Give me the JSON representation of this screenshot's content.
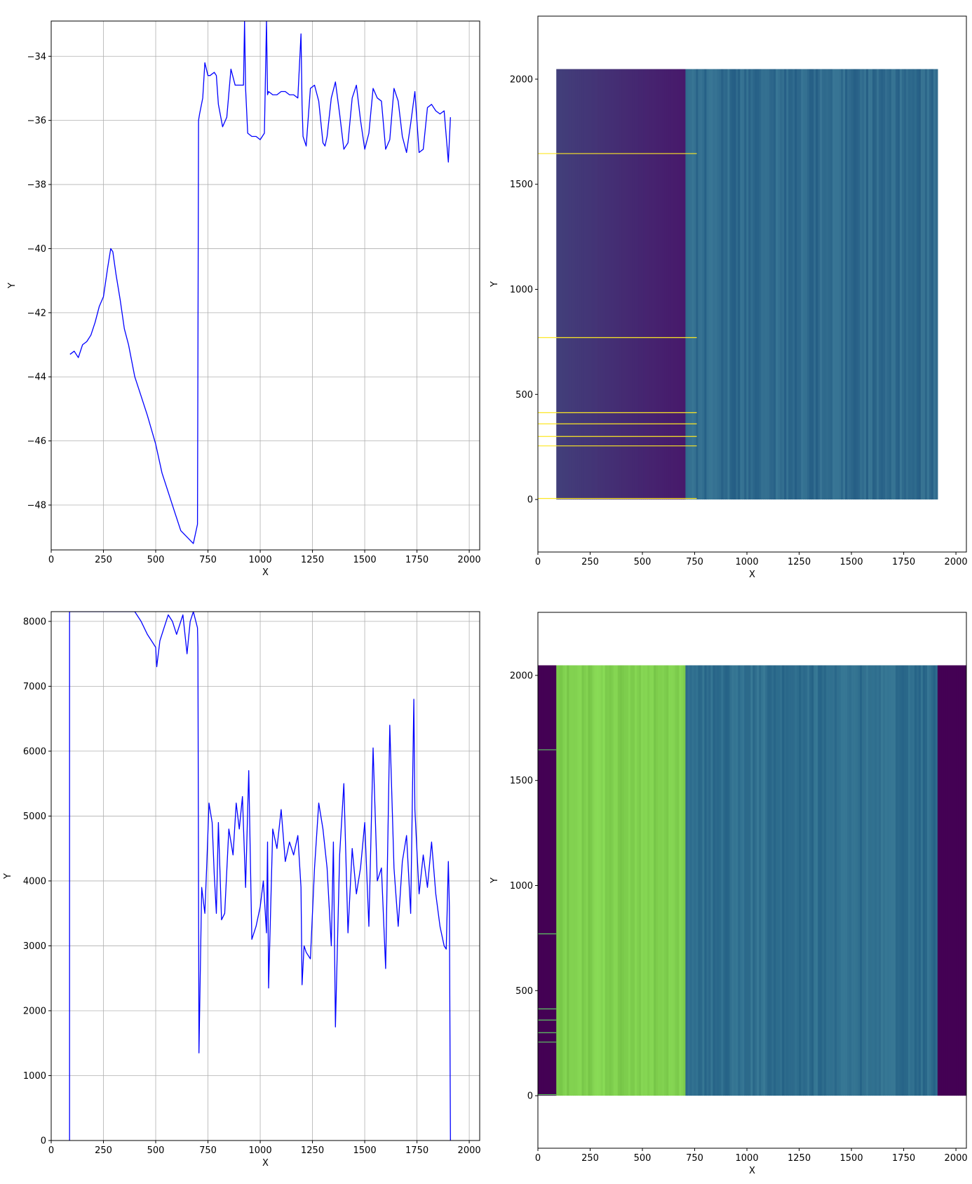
{
  "chart_data": [
    {
      "id": "top-left",
      "type": "line",
      "xlabel": "X",
      "ylabel": "Y",
      "xlim": [
        0,
        2050
      ],
      "ylim": [
        -49.4,
        -32.9
      ],
      "xticks": [
        0,
        250,
        500,
        750,
        1000,
        1250,
        1500,
        1750,
        2000
      ],
      "yticks": [
        -48,
        -46,
        -44,
        -42,
        -40,
        -38,
        -36,
        -34
      ],
      "grid": true,
      "color": "#0000ff",
      "series": [
        {
          "x": [
            90,
            110,
            130,
            150,
            170,
            190,
            210,
            230,
            250,
            270,
            285,
            295,
            310,
            330,
            350,
            370,
            400,
            430,
            460,
            500,
            530,
            560,
            590,
            620,
            650,
            680,
            700,
            705,
            710,
            725,
            735,
            750,
            760,
            780,
            790,
            800,
            820,
            840,
            860,
            880,
            900,
            920,
            925,
            930,
            940,
            960,
            980,
            1000,
            1020,
            1030,
            1035,
            1040,
            1060,
            1080,
            1100,
            1120,
            1140,
            1160,
            1180,
            1195,
            1200,
            1205,
            1220,
            1240,
            1260,
            1280,
            1300,
            1310,
            1320,
            1340,
            1360,
            1380,
            1400,
            1420,
            1440,
            1460,
            1480,
            1500,
            1520,
            1540,
            1560,
            1580,
            1600,
            1620,
            1640,
            1660,
            1680,
            1700,
            1720,
            1740,
            1760,
            1780,
            1800,
            1820,
            1840,
            1860,
            1880,
            1900,
            1910
          ],
          "y": [
            -43.3,
            -43.2,
            -43.4,
            -43.0,
            -42.9,
            -42.7,
            -42.3,
            -41.8,
            -41.5,
            -40.6,
            -40.0,
            -40.1,
            -40.8,
            -41.6,
            -42.5,
            -43.0,
            -44.0,
            -44.6,
            -45.2,
            -46.1,
            -47.0,
            -47.6,
            -48.2,
            -48.8,
            -49.0,
            -49.2,
            -48.6,
            -36.0,
            -35.8,
            -35.3,
            -34.2,
            -34.6,
            -34.6,
            -34.5,
            -34.6,
            -35.5,
            -36.2,
            -35.9,
            -34.4,
            -34.9,
            -34.9,
            -34.9,
            -32.9,
            -35.0,
            -36.4,
            -36.5,
            -36.5,
            -36.6,
            -36.4,
            -32.9,
            -35.2,
            -35.1,
            -35.2,
            -35.2,
            -35.1,
            -35.1,
            -35.2,
            -35.2,
            -35.3,
            -33.3,
            -35.5,
            -36.5,
            -36.8,
            -35.0,
            -34.9,
            -35.4,
            -36.7,
            -36.8,
            -36.5,
            -35.3,
            -34.8,
            -35.8,
            -36.9,
            -36.7,
            -35.3,
            -34.9,
            -36.0,
            -36.9,
            -36.4,
            -35.0,
            -35.3,
            -35.4,
            -36.9,
            -36.6,
            -35.0,
            -35.4,
            -36.5,
            -37.0,
            -36.1,
            -35.1,
            -37.0,
            -36.9,
            -35.6,
            -35.5,
            -35.7,
            -35.8,
            -35.7,
            -37.3,
            -35.9
          ]
        }
      ]
    },
    {
      "id": "top-right",
      "type": "heatmap",
      "xlabel": "X",
      "ylabel": "Y",
      "xlim": [
        0,
        2050
      ],
      "ylim": [
        -250,
        2300
      ],
      "xticks": [
        0,
        250,
        500,
        750,
        1000,
        1250,
        1500,
        1750,
        2000
      ],
      "yticks": [
        0,
        500,
        1000,
        1500,
        2000
      ],
      "grid": false,
      "image_extent": {
        "x": [
          88,
          1912
        ],
        "y": [
          0,
          2048
        ]
      },
      "regions": [
        {
          "x": [
            88,
            706
          ],
          "from_color": "#423f7a",
          "to_color": "#47196b"
        },
        {
          "x": [
            706,
            1912
          ],
          "base_color": "#2f6a8d"
        }
      ],
      "highlight_rows": {
        "y": [
          1646,
          770,
          413,
          360,
          300,
          255,
          5
        ],
        "x_range": [
          0,
          760
        ],
        "color": "#fde725"
      }
    },
    {
      "id": "bottom-left",
      "type": "line",
      "xlabel": "X",
      "ylabel": "Y",
      "xlim": [
        0,
        2050
      ],
      "ylim": [
        0,
        8150
      ],
      "xticks": [
        0,
        250,
        500,
        750,
        1000,
        1250,
        1500,
        1750,
        2000
      ],
      "yticks": [
        0,
        1000,
        2000,
        3000,
        4000,
        5000,
        6000,
        7000,
        8000
      ],
      "grid": true,
      "color": "#0000ff",
      "series": [
        {
          "x": [
            88,
            88,
            90,
            120,
            160,
            200,
            260,
            330,
            400,
            430,
            460,
            480,
            500,
            505,
            520,
            540,
            560,
            580,
            600,
            630,
            650,
            665,
            680,
            700,
            702,
            707,
            720,
            735,
            745,
            755,
            770,
            780,
            790,
            800,
            815,
            830,
            850,
            870,
            885,
            900,
            915,
            930,
            945,
            960,
            980,
            1000,
            1015,
            1030,
            1035,
            1040,
            1060,
            1080,
            1100,
            1120,
            1140,
            1160,
            1180,
            1195,
            1200,
            1210,
            1220,
            1240,
            1260,
            1280,
            1300,
            1320,
            1340,
            1350,
            1360,
            1380,
            1400,
            1420,
            1440,
            1460,
            1480,
            1500,
            1520,
            1540,
            1560,
            1580,
            1600,
            1620,
            1640,
            1660,
            1680,
            1700,
            1720,
            1735,
            1740,
            1760,
            1780,
            1800,
            1820,
            1840,
            1860,
            1880,
            1890,
            1900,
            1905,
            1910,
            1912
          ],
          "y": [
            0,
            8150,
            8150,
            8150,
            8150,
            8150,
            8150,
            8150,
            8150,
            8000,
            7800,
            7700,
            7600,
            7300,
            7700,
            7900,
            8100,
            8000,
            7800,
            8100,
            7500,
            8000,
            8150,
            7900,
            7600,
            1350,
            3900,
            3500,
            4300,
            5200,
            4900,
            4100,
            3500,
            4900,
            3400,
            3500,
            4800,
            4400,
            5200,
            4800,
            5300,
            3900,
            5700,
            3100,
            3300,
            3600,
            4000,
            3200,
            4600,
            2350,
            4800,
            4500,
            5100,
            4300,
            4600,
            4400,
            4700,
            3900,
            2400,
            3000,
            2900,
            2800,
            4200,
            5200,
            4800,
            4200,
            3000,
            4600,
            1750,
            4400,
            5500,
            3200,
            4500,
            3800,
            4200,
            4900,
            3300,
            6050,
            4000,
            4200,
            2650,
            6400,
            4200,
            3300,
            4300,
            4700,
            3500,
            6800,
            5100,
            3800,
            4400,
            3900,
            4600,
            3800,
            3300,
            3000,
            2950,
            4300,
            3600,
            0,
            0
          ]
        }
      ]
    },
    {
      "id": "bottom-right",
      "type": "heatmap",
      "xlabel": "X",
      "ylabel": "Y",
      "xlim": [
        0,
        2050
      ],
      "ylim": [
        -250,
        2300
      ],
      "xticks": [
        0,
        250,
        500,
        750,
        1000,
        1250,
        1500,
        1750,
        2000
      ],
      "yticks": [
        0,
        500,
        1000,
        1500,
        2000
      ],
      "grid": false,
      "image_extent": {
        "x": [
          0,
          2050
        ],
        "y": [
          0,
          2048
        ]
      },
      "regions": [
        {
          "x": [
            0,
            88
          ],
          "base_color": "#440154"
        },
        {
          "x": [
            88,
            706
          ],
          "base_color": "#80d04f"
        },
        {
          "x": [
            706,
            1912
          ],
          "base_color": "#2f6e8e"
        },
        {
          "x": [
            1912,
            2050
          ],
          "base_color": "#440154"
        }
      ],
      "highlight_rows": {
        "y": [
          1646,
          770,
          413,
          360,
          300,
          255,
          5
        ],
        "x_range": [
          0,
          88
        ],
        "color": "#5ec962"
      }
    }
  ]
}
